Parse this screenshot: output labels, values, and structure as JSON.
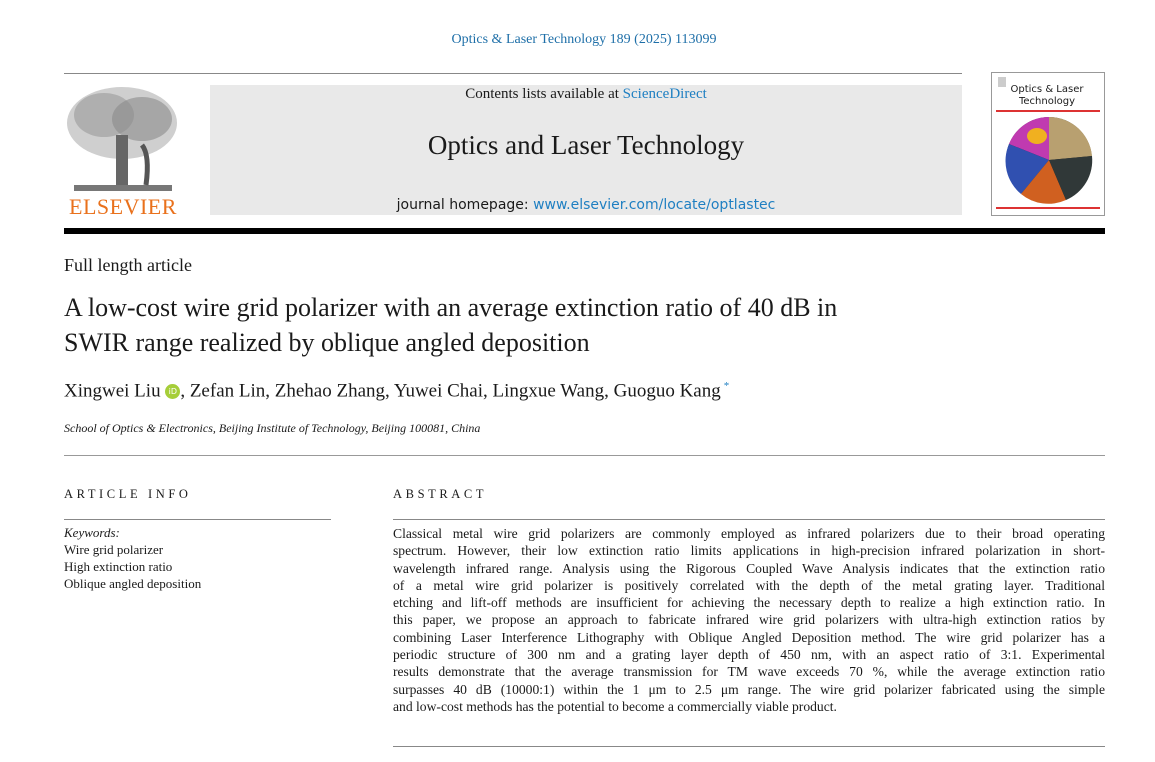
{
  "header": {
    "citation": "Optics & Laser Technology 189 (2025) 113099",
    "contents_prefix": "Contents lists available at ",
    "contents_link": "ScienceDirect",
    "journal_title": "Optics and Laser Technology",
    "homepage_prefix": "journal homepage: ",
    "homepage_link": "www.elsevier.com/locate/optlastec",
    "publisher_logo_text": "ELSEVIER",
    "cover_title": "Optics & Laser Technology"
  },
  "article": {
    "type": "Full length article",
    "title_lines": [
      "A low-cost wire grid polarizer with an average extinction ratio of 40 dB in",
      "SWIR range realized by oblique angled deposition"
    ],
    "authors": [
      {
        "name": "Xingwei Liu",
        "orcid": true
      },
      {
        "name": "Zefan Lin"
      },
      {
        "name": "Zhehao Zhang"
      },
      {
        "name": "Yuwei Chai"
      },
      {
        "name": "Lingxue Wang"
      },
      {
        "name": "Guoguo Kang",
        "mark": "*"
      }
    ],
    "orcid_label": "iD",
    "affiliation": "School of Optics & Electronics, Beijing Institute of Technology, Beijing 100081, China"
  },
  "article_info": {
    "heading": "ARTICLE INFO",
    "keywords_label": "Keywords:",
    "keywords": [
      "Wire grid polarizer",
      "High extinction ratio",
      "Oblique angled deposition"
    ]
  },
  "abstract": {
    "heading": "ABSTRACT",
    "lines": [
      "Classical metal wire grid polarizers are commonly employed as infrared polarizers due to their broad operating",
      "spectrum. However, their low extinction ratio limits applications in high-precision infrared polarization in short-",
      "wavelength infrared range. Analysis using the Rigorous Coupled Wave Analysis indicates that the extinction ratio",
      "of a metal wire grid polarizer is positively correlated with the depth of the metal grating layer. Traditional",
      "etching and lift-off methods are insufficient for achieving the necessary depth to realize a high extinction ratio. In",
      "this paper, we propose an approach to fabricate infrared wire grid polarizers with ultra-high extinction ratios by",
      "combining Laser Interference Lithography with Oblique Angled Deposition method. The wire grid polarizer has a",
      "periodic structure of 300 nm and a grating layer depth of 450 nm, with an aspect ratio of 3:1. Experimental",
      "results demonstrate that the average transmission for TM wave exceeds 70 %, while the average extinction ratio",
      "surpasses 40 dB (10000:1) within the 1 μm to 2.5 μm range. The wire grid polarizer fabricated using the simple",
      "and low-cost methods has the potential to become a commercially viable product."
    ]
  },
  "colors": {
    "link": "#1e7fc2",
    "elsevier_orange": "#e9711c",
    "orcid": "#a6ce39"
  }
}
